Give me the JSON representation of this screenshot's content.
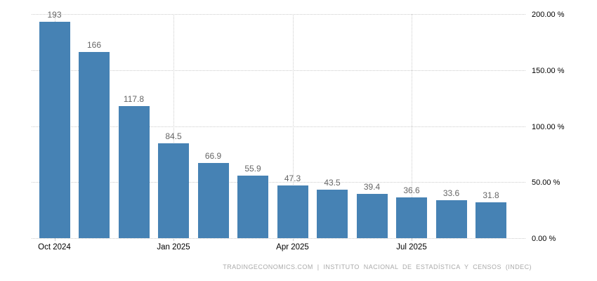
{
  "chart_data": {
    "type": "bar",
    "title": "",
    "values": [
      193,
      166,
      117.8,
      84.5,
      66.9,
      55.9,
      47.3,
      43.5,
      39.4,
      36.6,
      33.6,
      31.8
    ],
    "bar_labels": [
      "193",
      "166",
      "117.8",
      "84.5",
      "66.9",
      "55.9",
      "47.3",
      "43.5",
      "39.4",
      "36.6",
      "33.6",
      "31.8"
    ],
    "x_tick_labels": [
      {
        "slot": 0,
        "label": "Oct 2024"
      },
      {
        "slot": 3,
        "label": "Jan 2025"
      },
      {
        "slot": 6,
        "label": "Apr 2025"
      },
      {
        "slot": 9,
        "label": "Jul 2025"
      }
    ],
    "y_ticks": [
      {
        "value": 0,
        "label": "0.00 %"
      },
      {
        "value": 50,
        "label": "50.00 %"
      },
      {
        "value": 100,
        "label": "100.00 %"
      },
      {
        "value": 150,
        "label": "150.00 %"
      },
      {
        "value": 200,
        "label": "200.00 %"
      }
    ],
    "ylim": [
      0,
      200
    ],
    "grid": "dotted horizontal lines at y ticks, dotted vertical lines at labeled x ticks",
    "legend": "none",
    "colors": {
      "bar": "#4682b4",
      "gridline": "#cccccc",
      "bar_value_label": "#666666",
      "axis_label": "#000000",
      "footer_text": "#aaaaaa"
    }
  },
  "footer": {
    "text": "TRADINGECONOMICS.COM | INSTITUTO NACIONAL DE ESTADÍSTICA Y CENSOS (INDEC)"
  }
}
